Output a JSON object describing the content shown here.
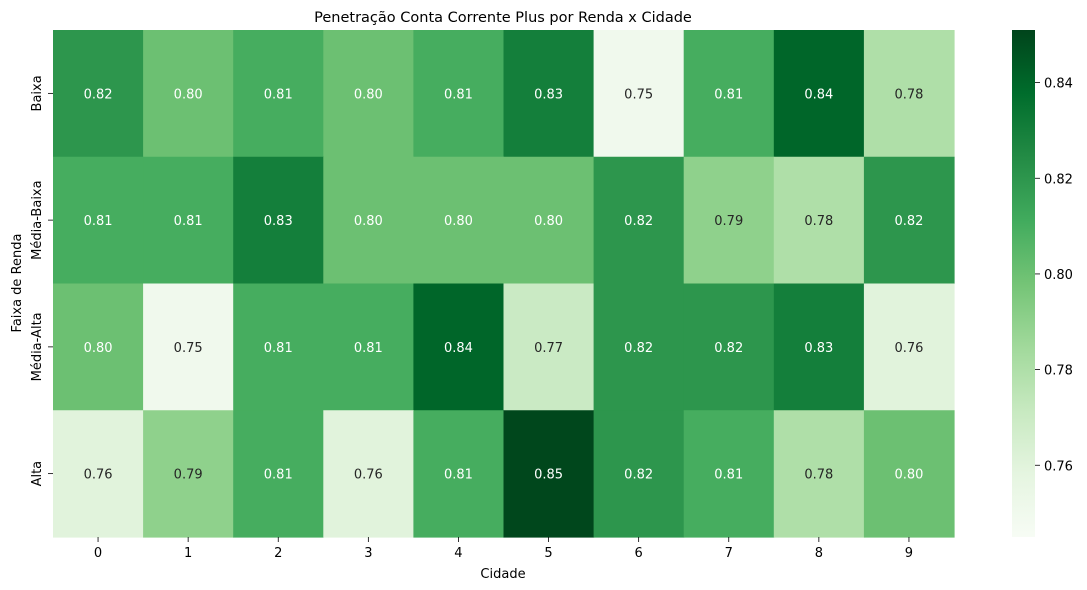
{
  "chart_data": {
    "type": "heatmap",
    "title": "Penetração Conta Corrente Plus por Renda x Cidade",
    "xlabel": "Cidade",
    "ylabel": "Faixa de Renda",
    "x_categories": [
      "0",
      "1",
      "2",
      "3",
      "4",
      "5",
      "6",
      "7",
      "8",
      "9"
    ],
    "y_categories": [
      "Baixa",
      "Média-Baixa",
      "Média-Alta",
      "Alta"
    ],
    "values": [
      [
        0.82,
        0.8,
        0.81,
        0.8,
        0.81,
        0.83,
        0.75,
        0.81,
        0.84,
        0.78
      ],
      [
        0.81,
        0.81,
        0.83,
        0.8,
        0.8,
        0.8,
        0.82,
        0.79,
        0.78,
        0.82
      ],
      [
        0.8,
        0.75,
        0.81,
        0.81,
        0.84,
        0.77,
        0.82,
        0.82,
        0.83,
        0.76
      ],
      [
        0.76,
        0.79,
        0.81,
        0.76,
        0.81,
        0.85,
        0.82,
        0.81,
        0.78,
        0.8
      ]
    ],
    "annotations": [
      [
        "0.82",
        "0.80",
        "0.81",
        "0.80",
        "0.81",
        "0.83",
        "0.75",
        "0.81",
        "0.84",
        "0.78"
      ],
      [
        "0.81",
        "0.81",
        "0.83",
        "0.80",
        "0.80",
        "0.80",
        "0.82",
        "0.79",
        "0.78",
        "0.82"
      ],
      [
        "0.80",
        "0.75",
        "0.81",
        "0.81",
        "0.84",
        "0.77",
        "0.82",
        "0.82",
        "0.83",
        "0.76"
      ],
      [
        "0.76",
        "0.79",
        "0.81",
        "0.76",
        "0.81",
        "0.85",
        "0.82",
        "0.81",
        "0.78",
        "0.80"
      ]
    ],
    "colormap": "Greens",
    "vmin": 0.745,
    "vmax": 0.851,
    "colorbar_ticks": [
      "0.76",
      "0.78",
      "0.80",
      "0.82",
      "0.84"
    ],
    "colorbar_tick_values": [
      0.76,
      0.78,
      0.8,
      0.82,
      0.84
    ],
    "gradient_stops": [
      "#f7fcf5",
      "#e5f5e0",
      "#c7e9c0",
      "#a1d99b",
      "#74c476",
      "#41ab5d",
      "#238b45",
      "#006d2c",
      "#00441b"
    ],
    "text_colors": {
      "light": "#ffffff",
      "dark": "#262626"
    },
    "grid": false,
    "legend": "colorbar-right"
  }
}
